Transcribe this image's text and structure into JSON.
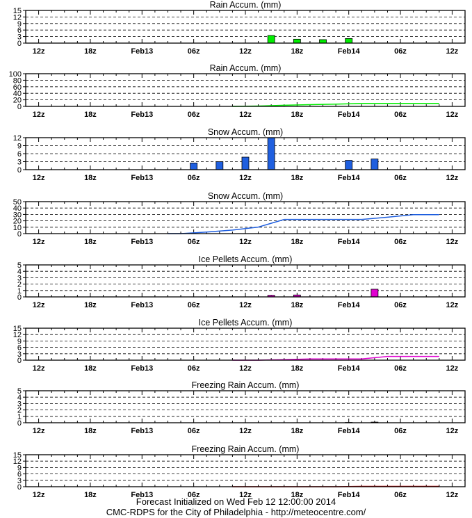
{
  "x_ticks": [
    "12z",
    "18z",
    "Feb13",
    "06z",
    "12z",
    "18z",
    "Feb14",
    "06z",
    "12z"
  ],
  "footer": {
    "line1": "Forecast Initialized on Wed Feb 12 12:00:00 2014",
    "line2": "CMC-RDPS for the City of Philadelphia - http://meteocentre.com/"
  },
  "colors": {
    "rain": "#00ee00",
    "snow": "#1f5fdf",
    "ice": "#e000d0",
    "freezing": "#cc0000"
  },
  "chart_data": [
    {
      "type": "bar",
      "title": "Rain Accum. (mm)",
      "color": "#00ee00",
      "ylim": [
        0,
        15
      ],
      "yticks": [
        0,
        3,
        6,
        9,
        12,
        15
      ],
      "x_hours": [
        57,
        63,
        69,
        75
      ],
      "values": [
        3.5,
        1.8,
        1.6,
        2.1
      ]
    },
    {
      "type": "line",
      "title": "Rain Accum. (mm)",
      "color": "#00ee00",
      "ylim": [
        0,
        100
      ],
      "yticks": [
        0,
        20,
        40,
        60,
        80,
        100
      ],
      "x_hours": [
        48,
        54,
        60,
        66,
        72,
        78,
        84,
        90,
        96
      ],
      "values": [
        0,
        1,
        3.5,
        5.3,
        6.9,
        9.0,
        9.0,
        9.0,
        9.0
      ]
    },
    {
      "type": "bar",
      "title": "Snow Accum. (mm)",
      "color": "#1f5fdf",
      "ylim": [
        0,
        12
      ],
      "yticks": [
        0,
        3,
        6,
        9,
        12
      ],
      "x_hours": [
        39,
        45,
        51,
        57,
        75,
        81
      ],
      "values": [
        2.5,
        3.0,
        4.7,
        12.0,
        3.5,
        4.0
      ]
    },
    {
      "type": "line",
      "title": "Snow Accum. (mm)",
      "color": "#1f5fdf",
      "ylim": [
        0,
        50
      ],
      "yticks": [
        0,
        10,
        20,
        30,
        40,
        50
      ],
      "x_hours": [
        33,
        36,
        42,
        48,
        54,
        60,
        66,
        72,
        78,
        84,
        90,
        96
      ],
      "values": [
        0,
        0,
        2.5,
        5.5,
        10.2,
        22.2,
        22.2,
        22.2,
        22.2,
        25.7,
        29.7,
        29.7
      ]
    },
    {
      "type": "bar",
      "title": "Ice Pellets Accum. (mm)",
      "color": "#e000d0",
      "ylim": [
        0,
        5
      ],
      "yticks": [
        0,
        1,
        2,
        3,
        4,
        5
      ],
      "x_hours": [
        57,
        63,
        81
      ],
      "values": [
        0.25,
        0.3,
        1.2
      ]
    },
    {
      "type": "line",
      "title": "Ice Pellets Accum. (mm)",
      "color": "#e000d0",
      "ylim": [
        0,
        15
      ],
      "yticks": [
        0,
        3,
        6,
        9,
        12,
        15
      ],
      "x_hours": [
        48,
        54,
        60,
        66,
        72,
        78,
        84,
        90,
        96
      ],
      "values": [
        0,
        0,
        0.25,
        0.55,
        0.55,
        0.55,
        1.75,
        1.75,
        1.75
      ]
    },
    {
      "type": "bar",
      "title": "Freezing Rain Accum. (mm)",
      "color": "#cc0000",
      "ylim": [
        0,
        5
      ],
      "yticks": [
        0,
        1,
        2,
        3,
        4,
        5
      ],
      "x_hours": [
        75,
        81
      ],
      "values": [
        0.05,
        0.1
      ]
    },
    {
      "type": "line",
      "title": "Freezing Rain Accum. (mm)",
      "color": "#cc0000",
      "ylim": [
        0,
        15
      ],
      "yticks": [
        0,
        3,
        6,
        9,
        12,
        15
      ],
      "x_hours": [
        48,
        60,
        72,
        78,
        84,
        90,
        96
      ],
      "values": [
        0,
        0,
        0,
        0.15,
        0.15,
        0.15,
        0.15
      ]
    }
  ]
}
